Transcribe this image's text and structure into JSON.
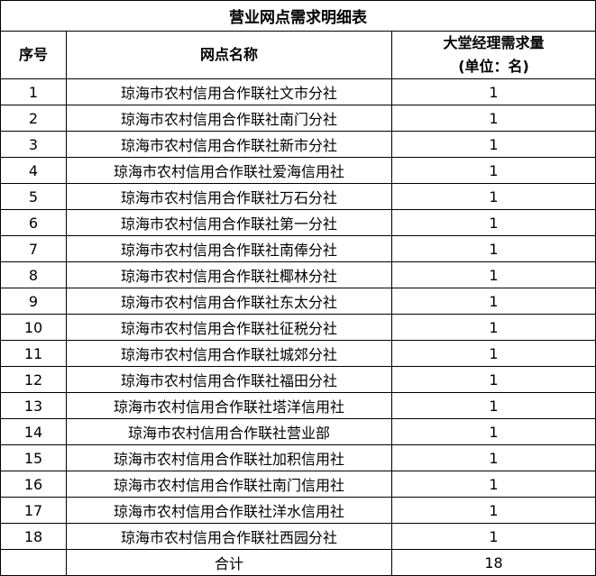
{
  "title": "营业网点需求明细表",
  "headers": {
    "index": "序号",
    "name": "网点名称",
    "demand_line1": "大堂经理需求量",
    "demand_line2": "(单位：名)"
  },
  "rows": [
    {
      "index": "1",
      "name": "琼海市农村信用合作联社文市分社",
      "demand": "1"
    },
    {
      "index": "2",
      "name": "琼海市农村信用合作联社南门分社",
      "demand": "1"
    },
    {
      "index": "3",
      "name": "琼海市农村信用合作联社新市分社",
      "demand": "1"
    },
    {
      "index": "4",
      "name": "琼海市农村信用合作联社爱海信用社",
      "demand": "1"
    },
    {
      "index": "5",
      "name": "琼海市农村信用合作联社万石分社",
      "demand": "1"
    },
    {
      "index": "6",
      "name": "琼海市农村信用合作联社第一分社",
      "demand": "1"
    },
    {
      "index": "7",
      "name": "琼海市农村信用合作联社南俸分社",
      "demand": "1"
    },
    {
      "index": "8",
      "name": "琼海市农村信用合作联社椰林分社",
      "demand": "1"
    },
    {
      "index": "9",
      "name": "琼海市农村信用合作联社东太分社",
      "demand": "1"
    },
    {
      "index": "10",
      "name": "琼海市农村信用合作联社征税分社",
      "demand": "1"
    },
    {
      "index": "11",
      "name": "琼海市农村信用合作联社城郊分社",
      "demand": "1"
    },
    {
      "index": "12",
      "name": "琼海市农村信用合作联社福田分社",
      "demand": "1"
    },
    {
      "index": "13",
      "name": "琼海市农村信用合作联社塔洋信用社",
      "demand": "1"
    },
    {
      "index": "14",
      "name": "琼海市农村信用合作联社营业部",
      "demand": "1"
    },
    {
      "index": "15",
      "name": "琼海市农村信用合作联社加积信用社",
      "demand": "1"
    },
    {
      "index": "16",
      "name": "琼海市农村信用合作联社南门信用社",
      "demand": "1"
    },
    {
      "index": "17",
      "name": "琼海市农村信用合作联社洋水信用社",
      "demand": "1"
    },
    {
      "index": "18",
      "name": "琼海市农村信用合作联社西园分社",
      "demand": "1"
    }
  ],
  "total": {
    "label": "合计",
    "value": "18"
  }
}
